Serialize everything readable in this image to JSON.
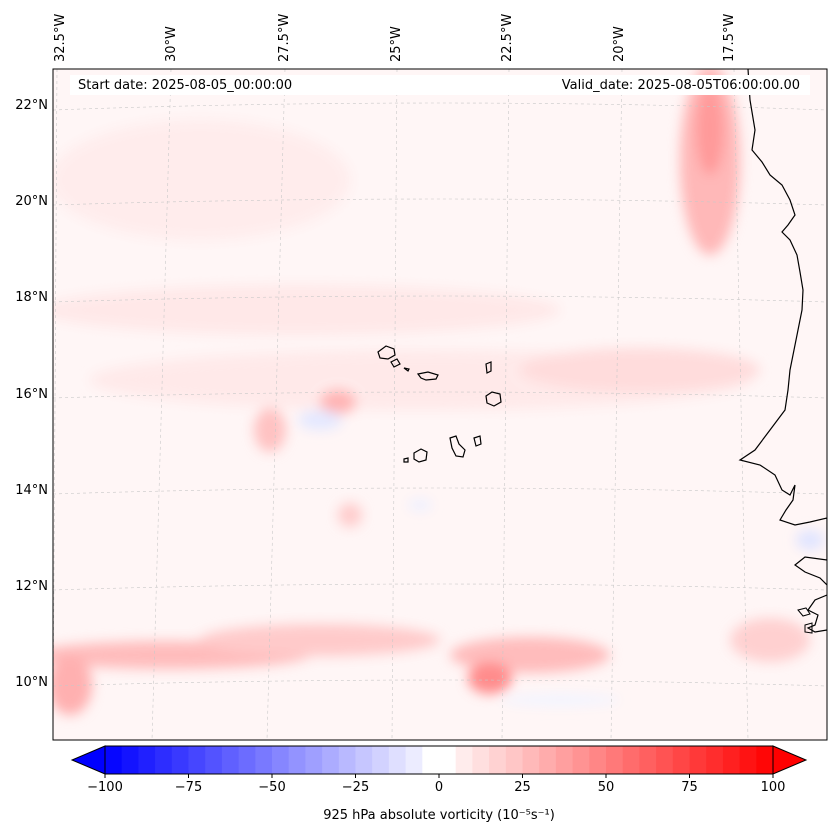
{
  "map": {
    "start_date": "Start date: 2025-08-05_00:00:00",
    "valid_date": "Valid_date: 2025-08-05T06:00:00.00",
    "lon_labels": [
      "32.5°W",
      "30°W",
      "27.5°W",
      "25°W",
      "22.5°W",
      "20°W",
      "17.5°W"
    ],
    "lat_labels": [
      "22°N",
      "20°N",
      "18°N",
      "16°N",
      "14°N",
      "12°N",
      "10°N"
    ],
    "colors": {
      "positive": "#ff0000",
      "negative": "#0000ff",
      "coast": "#000000",
      "grid": "#bbbbbb"
    }
  },
  "colorbar": {
    "label": "925 hPa absolute vorticity (10⁻⁵s⁻¹)",
    "ticks": [
      "−100",
      "−75",
      "−50",
      "−25",
      "0",
      "25",
      "50",
      "75",
      "100"
    ],
    "range": [
      -100,
      100
    ],
    "step": 5
  }
}
